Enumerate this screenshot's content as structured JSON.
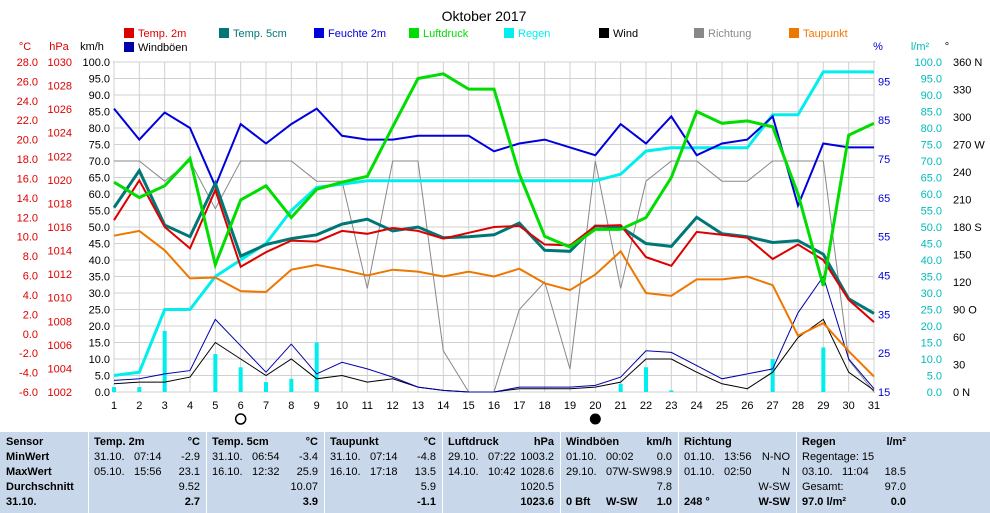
{
  "chart_data": {
    "type": "line",
    "title": "Oktober 2017",
    "days": [
      1,
      2,
      3,
      4,
      5,
      6,
      7,
      8,
      9,
      10,
      11,
      12,
      13,
      14,
      15,
      16,
      17,
      18,
      19,
      20,
      21,
      22,
      23,
      24,
      25,
      26,
      27,
      28,
      29,
      30,
      31
    ],
    "axes": {
      "temp": {
        "unit": "°C",
        "min": -6,
        "max": 28,
        "ticks": [
          "28.0",
          "26.0",
          "24.0",
          "22.0",
          "20.0",
          "18.0",
          "16.0",
          "14.0",
          "12.0",
          "10.0",
          "8.0",
          "6.0",
          "4.0",
          "2.0",
          "0.0",
          "-2.0",
          "-4.0",
          "-6.0"
        ],
        "color": "#dd0000"
      },
      "pressure": {
        "unit": "hPa",
        "min": 1002,
        "max": 1030,
        "ticks": [
          "1030",
          "1028",
          "1026",
          "1024",
          "1022",
          "1020",
          "1018",
          "1016",
          "1014",
          "1012",
          "1010",
          "1008",
          "1006",
          "1004",
          "1002"
        ],
        "color": "#dd0000"
      },
      "wind": {
        "unit": "km/h",
        "min": 0,
        "max": 100,
        "ticks": [
          "100.0",
          "95.0",
          "90.0",
          "85.0",
          "80.0",
          "75.0",
          "70.0",
          "65.0",
          "60.0",
          "55.0",
          "50.0",
          "45.0",
          "40.0",
          "35.0",
          "30.0",
          "25.0",
          "20.0",
          "15.0",
          "10.0",
          "5.0",
          "0.0"
        ],
        "color": "#000000"
      },
      "humidity": {
        "unit": "%",
        "min": 15,
        "max": 100,
        "ticks": [
          "95",
          "85",
          "75",
          "65",
          "55",
          "45",
          "35",
          "25",
          "15"
        ],
        "color": "#0000dd"
      },
      "rain": {
        "unit": "l/m²",
        "min": 0,
        "max": 100,
        "ticks": [
          "100.0",
          "95.0",
          "90.0",
          "85.0",
          "80.0",
          "75.0",
          "70.0",
          "65.0",
          "60.0",
          "55.0",
          "50.0",
          "45.0",
          "40.0",
          "35.0",
          "30.0",
          "25.0",
          "20.0",
          "15.0",
          "10.0",
          "5.0",
          "0.0"
        ],
        "color": "#00dddd"
      },
      "direction": {
        "unit": "°",
        "min": 0,
        "max": 360,
        "ticks": [
          "360 N",
          "330",
          "300",
          "270 W",
          "240",
          "210",
          "180 S",
          "150",
          "120",
          "90 O",
          "60",
          "30",
          "0 N"
        ],
        "color": "#000000"
      }
    },
    "legend": [
      {
        "label": "Temp. 2m",
        "color": "#dd0000"
      },
      {
        "label": "Temp. 5cm",
        "color": "#007777"
      },
      {
        "label": "Feuchte 2m",
        "color": "#0000dd"
      },
      {
        "label": "Luftdruck",
        "color": "#00dd00"
      },
      {
        "label": "Regen",
        "color": "#00eeee"
      },
      {
        "label": "Wind",
        "color": "#000000"
      },
      {
        "label": "Richtung",
        "color": "#888888"
      },
      {
        "label": "Taupunkt",
        "color": "#ee7700"
      },
      {
        "label": "Windböen",
        "color": "#0000aa"
      }
    ],
    "moon": {
      "new_moon_day": 6,
      "full_moon_day": 20
    },
    "series": [
      {
        "name": "Temp. 2m",
        "axis": "temp",
        "color": "#dd0000",
        "values": [
          11.7,
          15.8,
          11.0,
          8.8,
          14.8,
          6.9,
          8.4,
          9.6,
          9.5,
          10.6,
          10.3,
          10.9,
          10.6,
          9.8,
          10.4,
          11.0,
          11.1,
          9.2,
          9.1,
          11.1,
          11.2,
          7.9,
          7.0,
          10.5,
          10.2,
          9.9,
          7.7,
          9.2,
          7.6,
          3.5,
          1.2
        ]
      },
      {
        "name": "Temp. 5cm",
        "axis": "temp",
        "color": "#007777",
        "values": [
          13.0,
          16.8,
          11.2,
          10.0,
          15.5,
          8.0,
          9.2,
          9.8,
          10.2,
          11.3,
          11.8,
          10.6,
          11.0,
          9.9,
          10.0,
          10.2,
          11.4,
          8.6,
          8.5,
          11.1,
          11.0,
          9.3,
          9.0,
          12.0,
          10.3,
          10.0,
          9.4,
          9.6,
          8.2,
          3.6,
          2.1
        ]
      },
      {
        "name": "Taupunkt",
        "axis": "temp",
        "color": "#ee7700",
        "values": [
          10.1,
          10.6,
          8.6,
          5.7,
          5.8,
          4.4,
          4.3,
          6.6,
          7.1,
          6.6,
          6.0,
          6.6,
          6.4,
          5.9,
          6.4,
          5.9,
          6.7,
          5.2,
          4.5,
          6.1,
          8.5,
          4.2,
          3.9,
          5.6,
          5.6,
          5.9,
          5.0,
          -0.2,
          1.1,
          -1.8,
          -4.4
        ]
      },
      {
        "name": "Feuchte 2m",
        "axis": "humidity",
        "color": "#0000dd",
        "values": [
          88,
          80,
          87,
          83,
          68,
          84,
          79,
          84,
          88,
          81,
          80,
          80,
          81,
          81,
          81,
          77,
          79,
          80,
          78,
          76,
          84,
          79,
          86,
          76,
          79,
          80,
          86,
          63,
          79,
          78,
          78
        ]
      },
      {
        "name": "Luftdruck",
        "axis": "pressure",
        "color": "#00dd00",
        "values": [
          1019.8,
          1018.5,
          1019.5,
          1021.8,
          1012.8,
          1018.3,
          1019.5,
          1016.8,
          1019.2,
          1019.8,
          1020.3,
          1024.5,
          1028.6,
          1029.0,
          1027.7,
          1027.7,
          1020.5,
          1015.2,
          1014.3,
          1015.8,
          1015.8,
          1016.8,
          1020.2,
          1025.8,
          1024.8,
          1025.0,
          1024.5,
          1018.8,
          1011.0,
          1023.8,
          1024.8
        ]
      },
      {
        "name": "Windböen",
        "axis": "wind",
        "color": "#0000aa",
        "values": [
          3.5,
          4.0,
          5.5,
          6.5,
          22.0,
          14.0,
          6.0,
          14.5,
          5.5,
          9.0,
          7.0,
          4.5,
          1.5,
          0.5,
          0.0,
          0.0,
          1.5,
          1.5,
          1.5,
          2.0,
          4.5,
          12.5,
          12.0,
          8.0,
          4.0,
          5.5,
          7.0,
          24.0,
          35.0,
          10.0,
          1.0
        ]
      },
      {
        "name": "Wind",
        "axis": "wind",
        "color": "#000000",
        "values": [
          2.5,
          3.0,
          3.0,
          4.5,
          15.0,
          10.0,
          5.0,
          10.0,
          4.0,
          5.0,
          3.0,
          4.0,
          1.5,
          0.5,
          0.0,
          0.0,
          1.0,
          1.0,
          1.0,
          1.5,
          3.0,
          10.0,
          10.0,
          6.0,
          2.5,
          1.0,
          6.0,
          16.5,
          22.0,
          6.0,
          0.5
        ]
      },
      {
        "name": "Richtung",
        "axis": "direction",
        "color": "#888888",
        "values": [
          252,
          252,
          230,
          252,
          200,
          252,
          252,
          252,
          230,
          230,
          113,
          252,
          252,
          45,
          0,
          0,
          90,
          120,
          25,
          252,
          113,
          230,
          252,
          252,
          230,
          230,
          252,
          252,
          252,
          35,
          0
        ]
      },
      {
        "name": "Regen",
        "axis": "rain",
        "color": "#00eeee",
        "values": [
          5,
          6,
          25,
          25,
          35,
          40,
          45,
          55,
          62,
          63,
          64,
          64,
          64,
          64,
          64,
          64,
          64,
          64,
          64,
          64,
          66,
          73,
          74,
          74,
          74,
          74,
          84,
          84,
          97,
          97,
          97
        ]
      }
    ],
    "daily_rain_bars": {
      "axis": "rain",
      "color": "#00eeee",
      "values": [
        1.5,
        1.5,
        18.5,
        0,
        11.5,
        7.5,
        3.0,
        4.0,
        15.0,
        0,
        0,
        0,
        0,
        0,
        0,
        0,
        0,
        0,
        0,
        0,
        2.5,
        7.5,
        0.5,
        0,
        0,
        0,
        10.0,
        0,
        13.5,
        0,
        0
      ]
    }
  },
  "stats": {
    "sensor": {
      "title": "Sensor",
      "rows": [
        "MinWert",
        "MaxWert",
        "Durchschnitt",
        "31.10."
      ]
    },
    "columns": [
      {
        "title": "Temp. 2m",
        "unit": "°C",
        "rows": [
          [
            "31.10.",
            "07:14",
            "-2.9"
          ],
          [
            "05.10.",
            "15:56",
            "23.1"
          ],
          [
            "",
            "",
            "9.52"
          ],
          [
            "",
            "",
            "2.7"
          ]
        ]
      },
      {
        "title": "Temp. 5cm",
        "unit": "°C",
        "rows": [
          [
            "31.10.",
            "06:54",
            "-3.4"
          ],
          [
            "16.10.",
            "12:32",
            "25.9"
          ],
          [
            "",
            "",
            "10.07"
          ],
          [
            "",
            "",
            "3.9"
          ]
        ]
      },
      {
        "title": "Taupunkt",
        "unit": "°C",
        "rows": [
          [
            "31.10.",
            "07:14",
            "-4.8"
          ],
          [
            "16.10.",
            "17:18",
            "13.5"
          ],
          [
            "",
            "",
            "5.9"
          ],
          [
            "",
            "",
            "-1.1"
          ]
        ]
      },
      {
        "title": "Luftdruck",
        "unit": "hPa",
        "rows": [
          [
            "29.10.",
            "07:22",
            "1003.2"
          ],
          [
            "14.10.",
            "10:42",
            "1028.6"
          ],
          [
            "",
            "",
            "1020.5"
          ],
          [
            "",
            "",
            "1023.6"
          ]
        ]
      },
      {
        "title": "Windböen",
        "unit": "km/h",
        "rows": [
          [
            "01.10.",
            "00:02",
            "0.0"
          ],
          [
            "29.10.",
            "07W-SW",
            "98.9"
          ],
          [
            "",
            "",
            "7.8"
          ],
          [
            "0 Bft",
            "W-SW",
            "1.0"
          ]
        ]
      },
      {
        "title": "Richtung",
        "unit": "",
        "rows": [
          [
            "01.10.",
            "13:56",
            "N-NO"
          ],
          [
            "01.10.",
            "02:50",
            "N"
          ],
          [
            "",
            "",
            "W-SW"
          ],
          [
            "248 °",
            "",
            "W-SW"
          ]
        ]
      },
      {
        "title": "Regen",
        "unit": "l/m²",
        "rows": [
          [
            "Regentage: 15",
            "",
            ""
          ],
          [
            "03.10.",
            "11:04",
            "18.5"
          ],
          [
            "Gesamt:",
            "",
            "97.0"
          ],
          [
            "97.0 l/m²",
            "",
            "0.0"
          ]
        ]
      }
    ]
  }
}
